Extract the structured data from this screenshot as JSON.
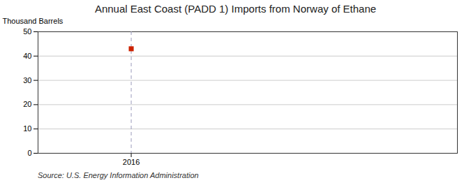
{
  "chart_data": {
    "type": "scatter",
    "title": "Annual East Coast (PADD 1) Imports from Norway of Ethane",
    "ylabel": "Thousand Barrels",
    "source": "Source: U.S. Energy Information Administration",
    "x": [
      2016
    ],
    "values": [
      43
    ],
    "color": "#cc2200",
    "marker": "square",
    "vlines": [
      {
        "x": 2016,
        "color": "#9999bb",
        "line_style": "dashed"
      }
    ],
    "xlim": [
      2015.6,
      2017.4
    ],
    "xticks": [
      2016
    ],
    "ylim": [
      0,
      50
    ],
    "yticks": [
      0,
      10,
      20,
      30,
      40,
      50
    ],
    "grid": true
  }
}
